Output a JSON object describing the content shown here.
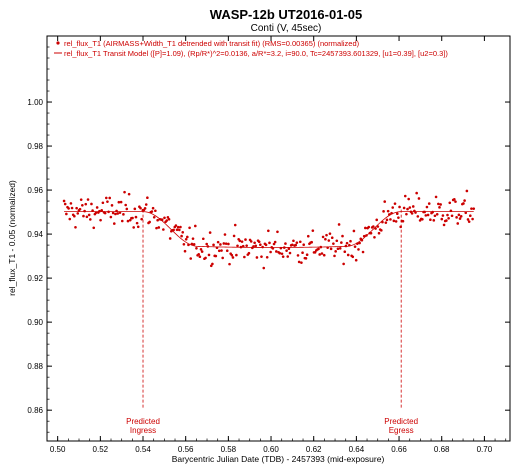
{
  "chart_data": {
    "type": "scatter",
    "title": "WASP-12b   UT2016-01-05",
    "subtitle": "Conti (V, 45sec)",
    "xlabel": "Barycentric Julian Date (TDB) - 2457393 (mid-exposure)",
    "ylabel": "rel_flux_T1 - 0.05 (normalized)",
    "xlim": [
      0.495,
      0.712
    ],
    "ylim": [
      0.846,
      1.03
    ],
    "xticks": [
      "0.50",
      "0.52",
      "0.54",
      "0.56",
      "0.58",
      "0.60",
      "0.62",
      "0.64",
      "0.66",
      "0.68",
      "0.70"
    ],
    "yticks": [
      "0.86",
      "0.88",
      "0.90",
      "0.92",
      "0.94",
      "0.96",
      "0.98",
      "1.00"
    ],
    "grid": false,
    "legend_position": "top-left",
    "legend": [
      "rel_flux_T1 (AIRMASS+Width_T1 detrended with transit fit) (RMS=0.00365) (normalized)",
      "rel_flux_T1 Transit Model ([P]=1.09), (Rp/R*)^2=0.0136, a/R*=3.2, i=90.0, Tc=2457393.601329, [u1=0.39], [u2=0.3])"
    ],
    "colors": {
      "data": "#cc0000",
      "model": "#cc0000",
      "frame": "#000000"
    },
    "transit_model": {
      "baseline": 0.9502,
      "depth_flux": 0.9344,
      "ingress_start": 0.54,
      "ingress_end": 0.566,
      "egress_start": 0.635,
      "egress_end": 0.661
    },
    "annotations": [
      {
        "x": 0.54,
        "lines": [
          "Predicted",
          "Ingress"
        ]
      },
      {
        "x": 0.661,
        "lines": [
          "Predicted",
          "Egress"
        ]
      }
    ],
    "series": [
      {
        "x_range": [
          0.503,
          0.695
        ],
        "n_points": 360,
        "noise_rms": 0.00365
      }
    ]
  }
}
